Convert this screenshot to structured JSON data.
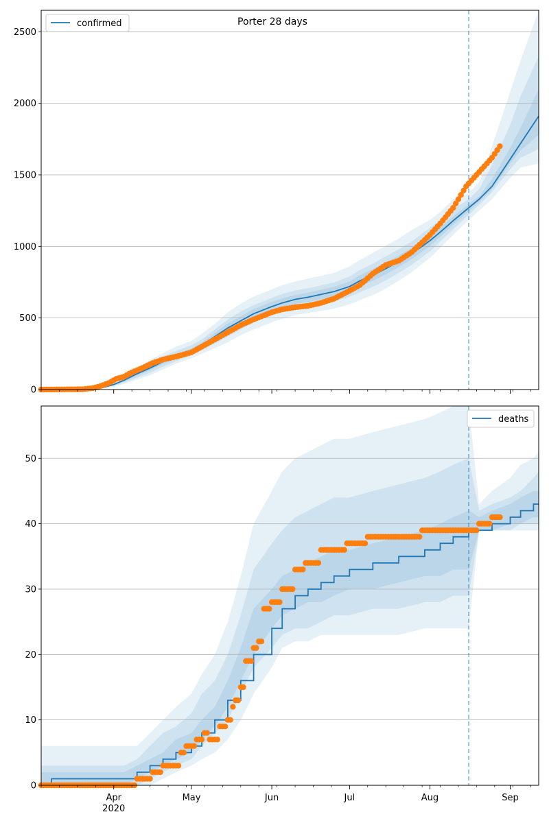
{
  "figure": {
    "title": "Porter 28 days",
    "colors": {
      "model": "#1f77b4",
      "observed": "#ff7f0e",
      "band": "#1f77b4",
      "grid": "#b0b0b0",
      "vline": "#1f77b4"
    }
  },
  "x_axis": {
    "ticks": [
      {
        "date": "2020-04-01",
        "label": "Apr",
        "sublabel": "2020"
      },
      {
        "date": "2020-05-01",
        "label": "May",
        "sublabel": ""
      },
      {
        "date": "2020-06-01",
        "label": "Jun",
        "sublabel": ""
      },
      {
        "date": "2020-07-01",
        "label": "Jul",
        "sublabel": ""
      },
      {
        "date": "2020-08-01",
        "label": "Aug",
        "sublabel": ""
      },
      {
        "date": "2020-09-01",
        "label": "Sep",
        "sublabel": ""
      }
    ],
    "range": [
      "2020-03-04",
      "2020-09-12"
    ]
  },
  "chart_data": [
    {
      "type": "line",
      "legend": "confirmed",
      "legend_position": "top-left",
      "ylim": [
        0,
        2650
      ],
      "yticks": [
        0,
        500,
        1000,
        1500,
        2000,
        2500
      ],
      "grid": "y",
      "forecast_start": "2020-08-16",
      "model": {
        "name": "confirmed",
        "x": [
          "2020-03-04",
          "2020-03-20",
          "2020-03-25",
          "2020-03-28",
          "2020-04-01",
          "2020-04-05",
          "2020-04-10",
          "2020-04-15",
          "2020-04-20",
          "2020-04-25",
          "2020-05-01",
          "2020-05-05",
          "2020-05-10",
          "2020-05-15",
          "2020-05-20",
          "2020-05-25",
          "2020-06-01",
          "2020-06-05",
          "2020-06-10",
          "2020-06-15",
          "2020-06-20",
          "2020-06-25",
          "2020-07-01",
          "2020-07-05",
          "2020-07-10",
          "2020-07-15",
          "2020-07-20",
          "2020-07-25",
          "2020-08-01",
          "2020-08-05",
          "2020-08-10",
          "2020-08-16",
          "2020-08-20",
          "2020-08-25",
          "2020-09-01",
          "2020-09-05",
          "2020-09-12"
        ],
        "y": [
          0,
          1,
          5,
          15,
          35,
          65,
          110,
          150,
          195,
          230,
          270,
          310,
          370,
          430,
          480,
          530,
          580,
          605,
          630,
          645,
          665,
          685,
          720,
          760,
          800,
          845,
          895,
          950,
          1040,
          1100,
          1180,
          1270,
          1330,
          1420,
          1610,
          1720,
          1910
        ]
      },
      "bands": [
        {
          "lower": [
            0,
            0,
            2,
            8,
            20,
            40,
            70,
            100,
            140,
            180,
            220,
            250,
            290,
            330,
            380,
            420,
            470,
            495,
            520,
            535,
            550,
            565,
            595,
            625,
            660,
            705,
            760,
            820,
            920,
            990,
            1080,
            1185,
            1250,
            1330,
            1480,
            1550,
            1580
          ],
          "upper": [
            1,
            3,
            10,
            25,
            55,
            100,
            160,
            205,
            255,
            300,
            340,
            390,
            460,
            540,
            600,
            650,
            700,
            730,
            755,
            775,
            795,
            815,
            860,
            905,
            955,
            1005,
            1055,
            1115,
            1185,
            1240,
            1330,
            1370,
            1450,
            1700,
            2080,
            2300,
            2650
          ]
        },
        {
          "lower": [
            0,
            0,
            3,
            10,
            25,
            48,
            82,
            118,
            160,
            198,
            240,
            275,
            320,
            370,
            420,
            470,
            520,
            545,
            568,
            582,
            598,
            615,
            648,
            680,
            718,
            762,
            815,
            872,
            965,
            1035,
            1120,
            1220,
            1290,
            1380,
            1540,
            1620,
            1680
          ],
          "upper": [
            1,
            2,
            7,
            20,
            45,
            85,
            140,
            185,
            230,
            270,
            310,
            350,
            420,
            490,
            545,
            590,
            640,
            668,
            692,
            708,
            728,
            748,
            790,
            835,
            880,
            930,
            980,
            1035,
            1130,
            1185,
            1260,
            1330,
            1400,
            1570,
            1850,
            2050,
            2330
          ]
        },
        {
          "lower": [
            0,
            0,
            4,
            12,
            30,
            57,
            96,
            135,
            178,
            215,
            255,
            293,
            345,
            400,
            450,
            500,
            550,
            575,
            598,
            612,
            630,
            650,
            685,
            720,
            760,
            805,
            856,
            912,
            1003,
            1068,
            1150,
            1245,
            1310,
            1400,
            1580,
            1670,
            1780
          ],
          "upper": [
            1,
            1,
            6,
            18,
            40,
            74,
            124,
            167,
            212,
            246,
            286,
            328,
            395,
            462,
            512,
            562,
            612,
            637,
            661,
            677,
            698,
            718,
            755,
            800,
            842,
            888,
            937,
            990,
            1080,
            1135,
            1210,
            1295,
            1350,
            1470,
            1690,
            1830,
            2100
          ]
        }
      ],
      "observed": {
        "name": "observed",
        "x": [
          "2020-03-04",
          "2020-03-20",
          "2020-03-24",
          "2020-03-27",
          "2020-03-30",
          "2020-04-02",
          "2020-04-05",
          "2020-04-08",
          "2020-04-12",
          "2020-04-16",
          "2020-04-20",
          "2020-04-25",
          "2020-05-01",
          "2020-05-05",
          "2020-05-10",
          "2020-05-15",
          "2020-05-20",
          "2020-05-25",
          "2020-06-01",
          "2020-06-05",
          "2020-06-10",
          "2020-06-15",
          "2020-06-20",
          "2020-06-25",
          "2020-07-01",
          "2020-07-05",
          "2020-07-10",
          "2020-07-15",
          "2020-07-20",
          "2020-07-25",
          "2020-08-01",
          "2020-08-05",
          "2020-08-10",
          "2020-08-15",
          "2020-08-20",
          "2020-08-25",
          "2020-08-28"
        ],
        "y": [
          0,
          2,
          10,
          25,
          45,
          75,
          90,
          120,
          150,
          185,
          210,
          230,
          260,
          300,
          350,
          400,
          450,
          490,
          540,
          560,
          575,
          585,
          605,
          635,
          690,
          730,
          810,
          870,
          900,
          960,
          1080,
          1160,
          1270,
          1420,
          1520,
          1620,
          1700
        ]
      }
    },
    {
      "type": "line",
      "legend": "deaths",
      "legend_position": "top-right",
      "ylim": [
        0,
        58
      ],
      "yticks": [
        0,
        10,
        20,
        30,
        40,
        50
      ],
      "grid": "y",
      "forecast_start": "2020-08-16",
      "model": {
        "name": "deaths",
        "x": [
          "2020-03-04",
          "2020-03-08",
          "2020-04-05",
          "2020-04-10",
          "2020-04-15",
          "2020-04-20",
          "2020-04-25",
          "2020-05-01",
          "2020-05-05",
          "2020-05-10",
          "2020-05-15",
          "2020-05-20",
          "2020-05-25",
          "2020-06-01",
          "2020-06-05",
          "2020-06-10",
          "2020-06-15",
          "2020-06-20",
          "2020-06-25",
          "2020-07-01",
          "2020-07-10",
          "2020-07-20",
          "2020-07-30",
          "2020-08-05",
          "2020-08-10",
          "2020-08-16",
          "2020-08-20",
          "2020-08-25",
          "2020-09-01",
          "2020-09-05",
          "2020-09-10",
          "2020-09-12"
        ],
        "y": [
          0,
          1,
          1,
          2,
          3,
          4,
          5,
          6,
          8,
          10,
          13,
          16,
          20,
          24,
          27,
          29,
          30,
          31,
          32,
          33,
          34,
          35,
          36,
          37,
          38,
          39,
          39,
          40,
          41,
          42,
          43,
          43
        ]
      },
      "bands": [
        {
          "lower": [
            0,
            0,
            0,
            0,
            0,
            1,
            2,
            3,
            4,
            5,
            7,
            10,
            14,
            18,
            21,
            22,
            22,
            23,
            23,
            23,
            23,
            23,
            24,
            24,
            24,
            24,
            39,
            39,
            39,
            39,
            39,
            39
          ],
          "upper": [
            6,
            6,
            6,
            6,
            8,
            10,
            12,
            14,
            17,
            20,
            25,
            32,
            40,
            45,
            48,
            50,
            51,
            52,
            53,
            53,
            54,
            55,
            56,
            57,
            58,
            58,
            43,
            45,
            47,
            49,
            50,
            51
          ]
        },
        {
          "lower": [
            0,
            0,
            0,
            0,
            1,
            2,
            3,
            4,
            6,
            8,
            10,
            14,
            18,
            21,
            23,
            24,
            24,
            25,
            26,
            26,
            27,
            27,
            28,
            28,
            29,
            29,
            39,
            39,
            39,
            40,
            40,
            40
          ],
          "upper": [
            3,
            3,
            3,
            4,
            6,
            8,
            9,
            11,
            14,
            16,
            20,
            26,
            33,
            37,
            39,
            41,
            42,
            43,
            44,
            44,
            45,
            46,
            47,
            48,
            49,
            50,
            42,
            43,
            44,
            45,
            47,
            48
          ]
        },
        {
          "lower": [
            0,
            0,
            0,
            1,
            2,
            3,
            4,
            5,
            7,
            9,
            12,
            16,
            20,
            24,
            26,
            27,
            28,
            28,
            29,
            30,
            30,
            31,
            32,
            32,
            33,
            33,
            39,
            39,
            40,
            40,
            41,
            41
          ],
          "upper": [
            2,
            2,
            2,
            3,
            4,
            5,
            7,
            8,
            10,
            12,
            16,
            21,
            27,
            30,
            32,
            33,
            34,
            35,
            36,
            36,
            37,
            38,
            39,
            40,
            41,
            42,
            41,
            42,
            43,
            44,
            45,
            45
          ]
        }
      ],
      "observed": {
        "name": "observed",
        "x": [
          "2020-03-04",
          "2020-04-09",
          "2020-04-10",
          "2020-04-16",
          "2020-04-20",
          "2020-04-27",
          "2020-04-29",
          "2020-05-03",
          "2020-05-06",
          "2020-05-08",
          "2020-05-12",
          "2020-05-15",
          "2020-05-17",
          "2020-05-18",
          "2020-05-20",
          "2020-05-22",
          "2020-05-25",
          "2020-05-27",
          "2020-05-29",
          "2020-06-01",
          "2020-06-05",
          "2020-06-10",
          "2020-06-14",
          "2020-06-20",
          "2020-06-30",
          "2020-07-08",
          "2020-07-29",
          "2020-08-15",
          "2020-08-20",
          "2020-08-25",
          "2020-08-28"
        ],
        "y": [
          0,
          0,
          1,
          2,
          3,
          5,
          6,
          7,
          8,
          7,
          9,
          10,
          12,
          13,
          15,
          19,
          21,
          22,
          27,
          28,
          30,
          33,
          34,
          36,
          37,
          38,
          39,
          39,
          40,
          41,
          41
        ]
      }
    }
  ]
}
